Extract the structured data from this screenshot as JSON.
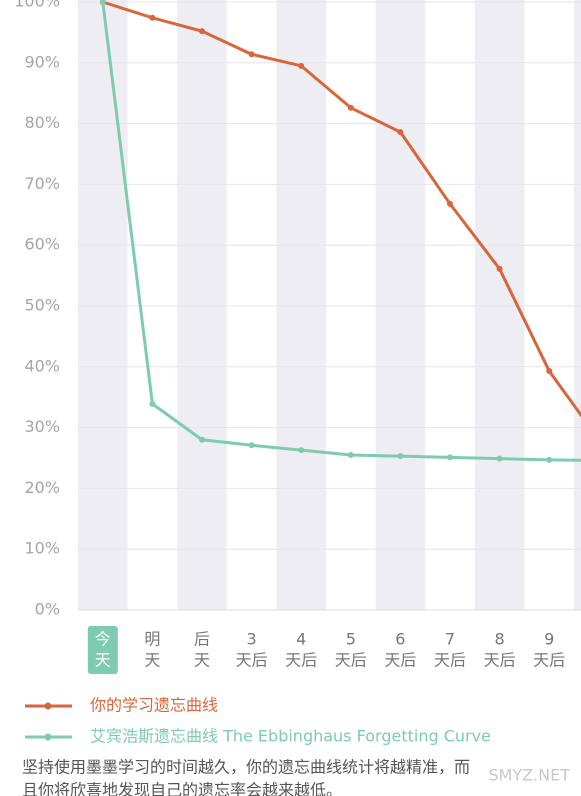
{
  "chart_data": {
    "type": "line",
    "categories": [
      [
        "今",
        "天"
      ],
      [
        "明",
        "天"
      ],
      [
        "后",
        "天"
      ],
      [
        "3",
        "天后"
      ],
      [
        "4",
        "天后"
      ],
      [
        "5",
        "天后"
      ],
      [
        "6",
        "天后"
      ],
      [
        "7",
        "天后"
      ],
      [
        "8",
        "天后"
      ],
      [
        "9",
        "天后"
      ],
      null
    ],
    "highlight_category": 0,
    "series": [
      {
        "name": "你的学习遗忘曲线",
        "color": "#d9663a",
        "values": [
          100,
          97.4,
          95.2,
          91.4,
          89.5,
          82.6,
          78.6,
          66.8,
          56.1,
          39.3,
          28
        ]
      },
      {
        "name": "艾宾浩斯遗忘曲线 The Ebbinghaus Forgetting Curve",
        "color": "#7ecbb0",
        "values": [
          100,
          33.9,
          28,
          27.1,
          26.3,
          25.5,
          25.3,
          25.1,
          24.9,
          24.7,
          24.6
        ]
      }
    ],
    "ylim": [
      0,
      100
    ],
    "yticks": [
      {
        "value": 0,
        "label": "0%"
      },
      {
        "value": 10,
        "label": "10%"
      },
      {
        "value": 20,
        "label": "20%"
      },
      {
        "value": 30,
        "label": "30%"
      },
      {
        "value": 40,
        "label": "40%"
      },
      {
        "value": 50,
        "label": "50%"
      },
      {
        "value": 60,
        "label": "60%"
      },
      {
        "value": 70,
        "label": "70%"
      },
      {
        "value": 80,
        "label": "80%"
      },
      {
        "value": 90,
        "label": "90%"
      },
      {
        "value": 100,
        "label": "100%"
      }
    ],
    "grid": true,
    "band_color": "#ededf3"
  },
  "paragraph": [
    "坚持使用墨墨学习的时间越久，你的遗忘曲线统计将越精准，而",
    "且你将欣喜地发现自己的遗忘率会越来越低。"
  ],
  "watermark": "SMYZ.NET"
}
